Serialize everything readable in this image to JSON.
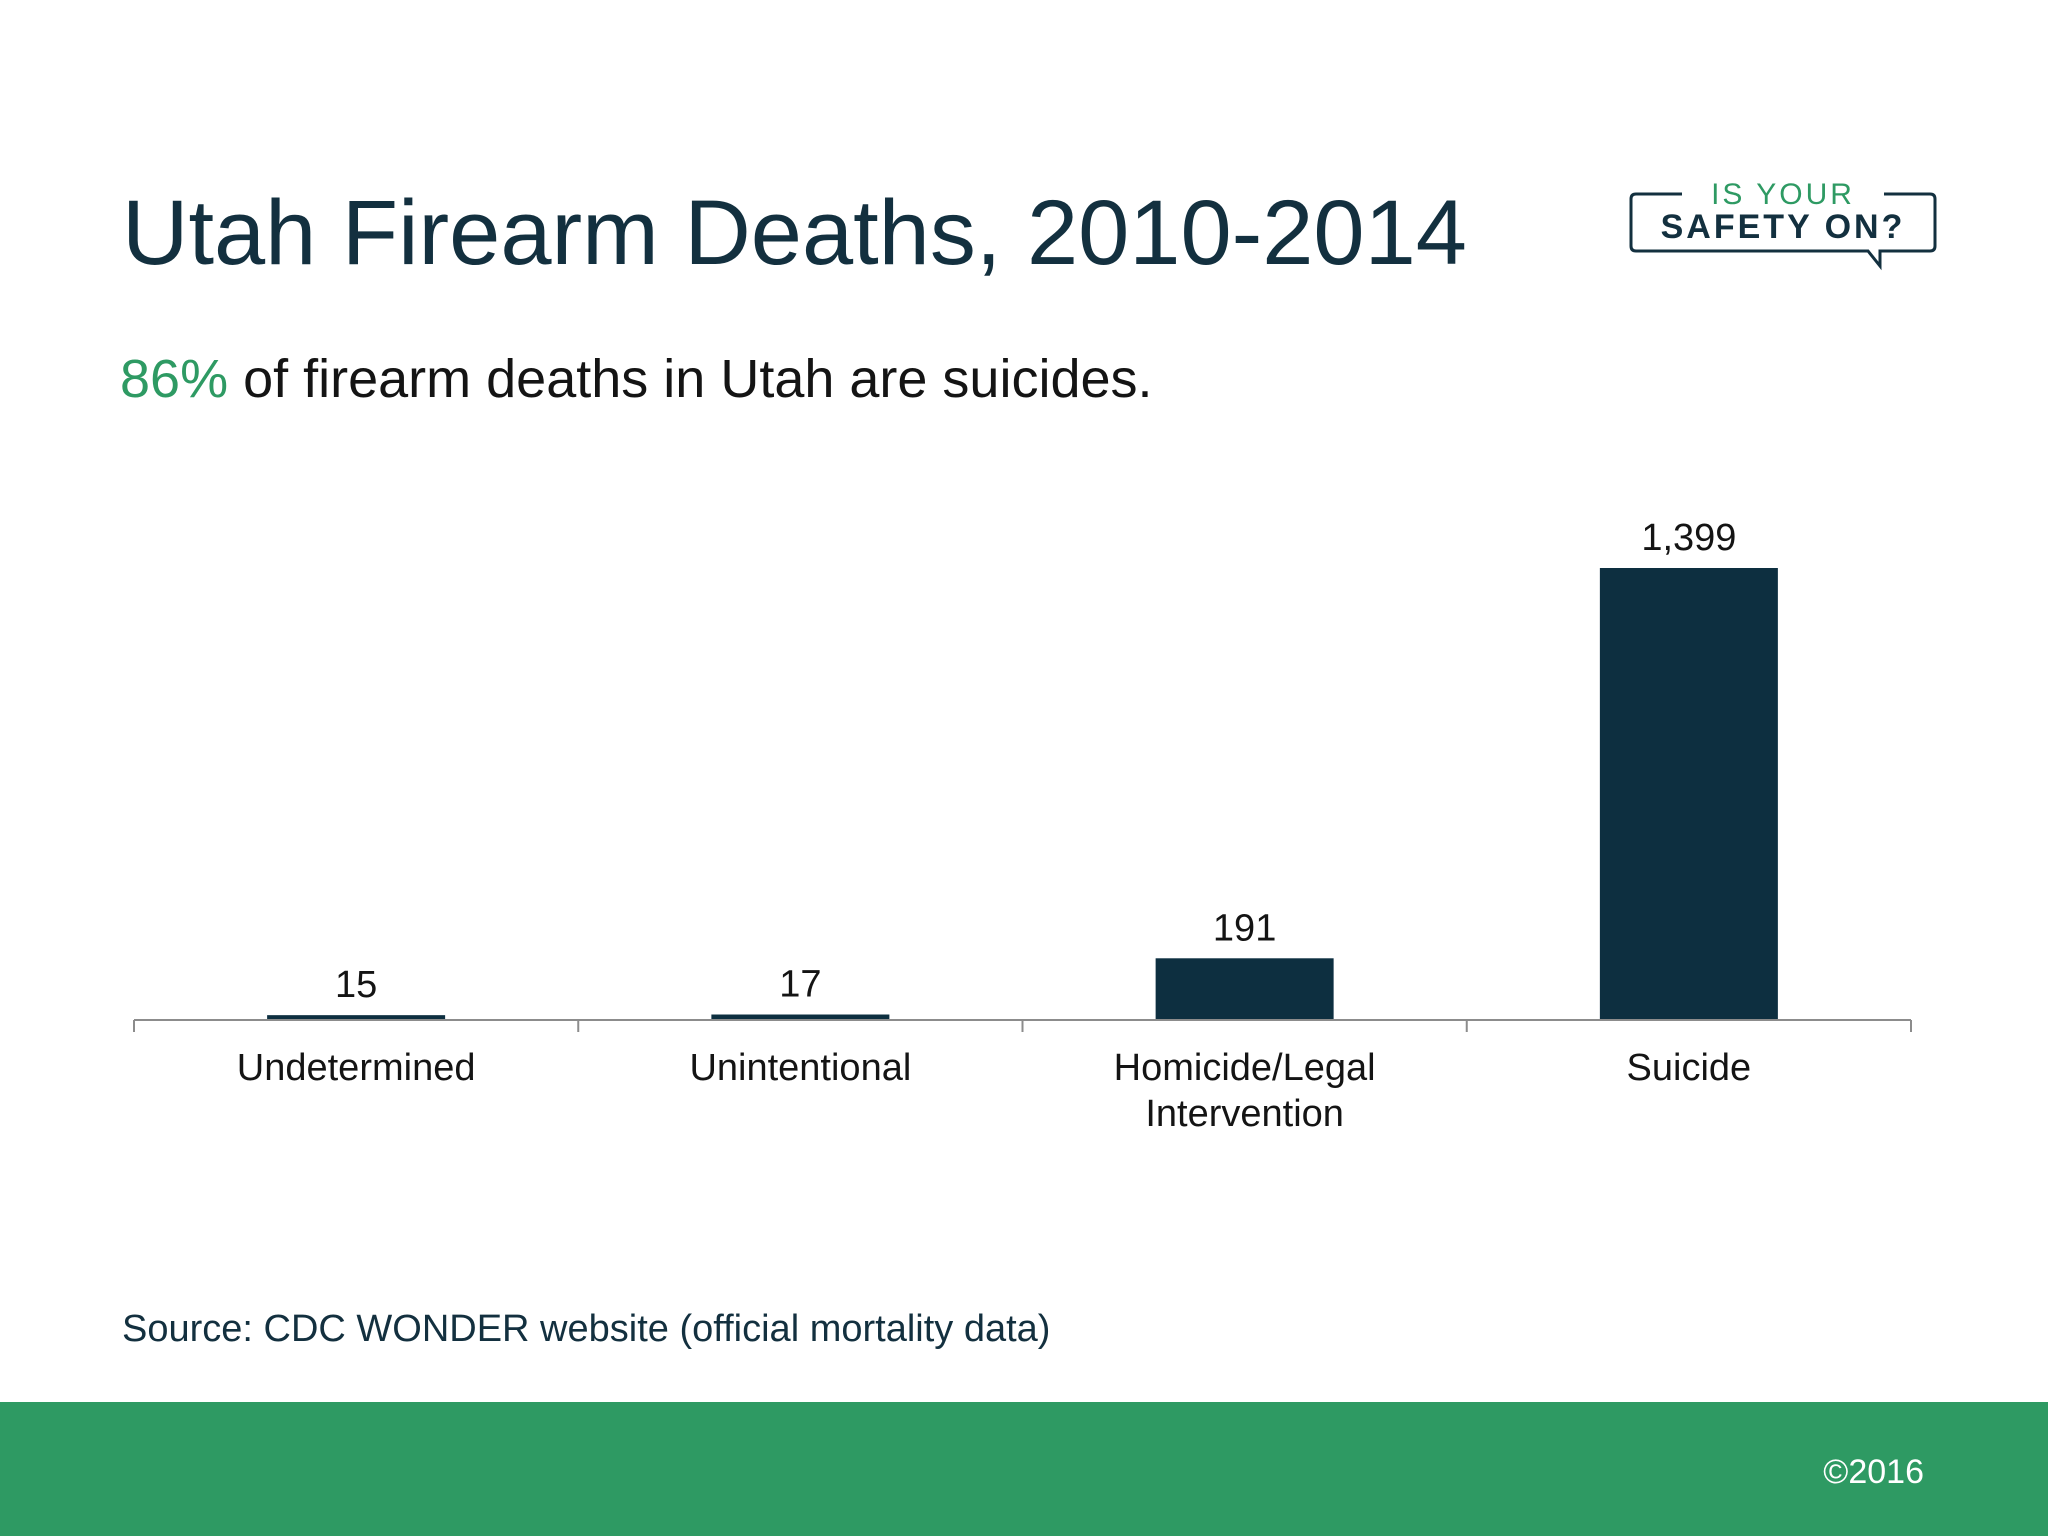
{
  "title": "Utah Firearm Deaths, 2010-2014",
  "subtitle": {
    "highlight": "86%",
    "text": " of firearm deaths in Utah are suicides."
  },
  "logo": {
    "line1": "IS YOUR",
    "line2": "SAFETY ON?"
  },
  "source": "Source: CDC WONDER website (official mortality data)",
  "footer": {
    "copyright": "©2016"
  },
  "colors": {
    "bar": "#0d2f40",
    "accent": "#2e9a63",
    "title": "#13303f"
  },
  "chart_data": {
    "type": "bar",
    "categories": [
      [
        "Undetermined"
      ],
      [
        "Unintentional"
      ],
      [
        "Homicide/Legal",
        "Intervention"
      ],
      [
        "Suicide"
      ]
    ],
    "values": [
      15,
      17,
      191,
      1399
    ],
    "value_labels": [
      "15",
      "17",
      "191",
      "1,399"
    ],
    "title": "",
    "xlabel": "",
    "ylabel": "",
    "ylim": [
      0,
      1399
    ],
    "grid": false,
    "legend": "none"
  }
}
